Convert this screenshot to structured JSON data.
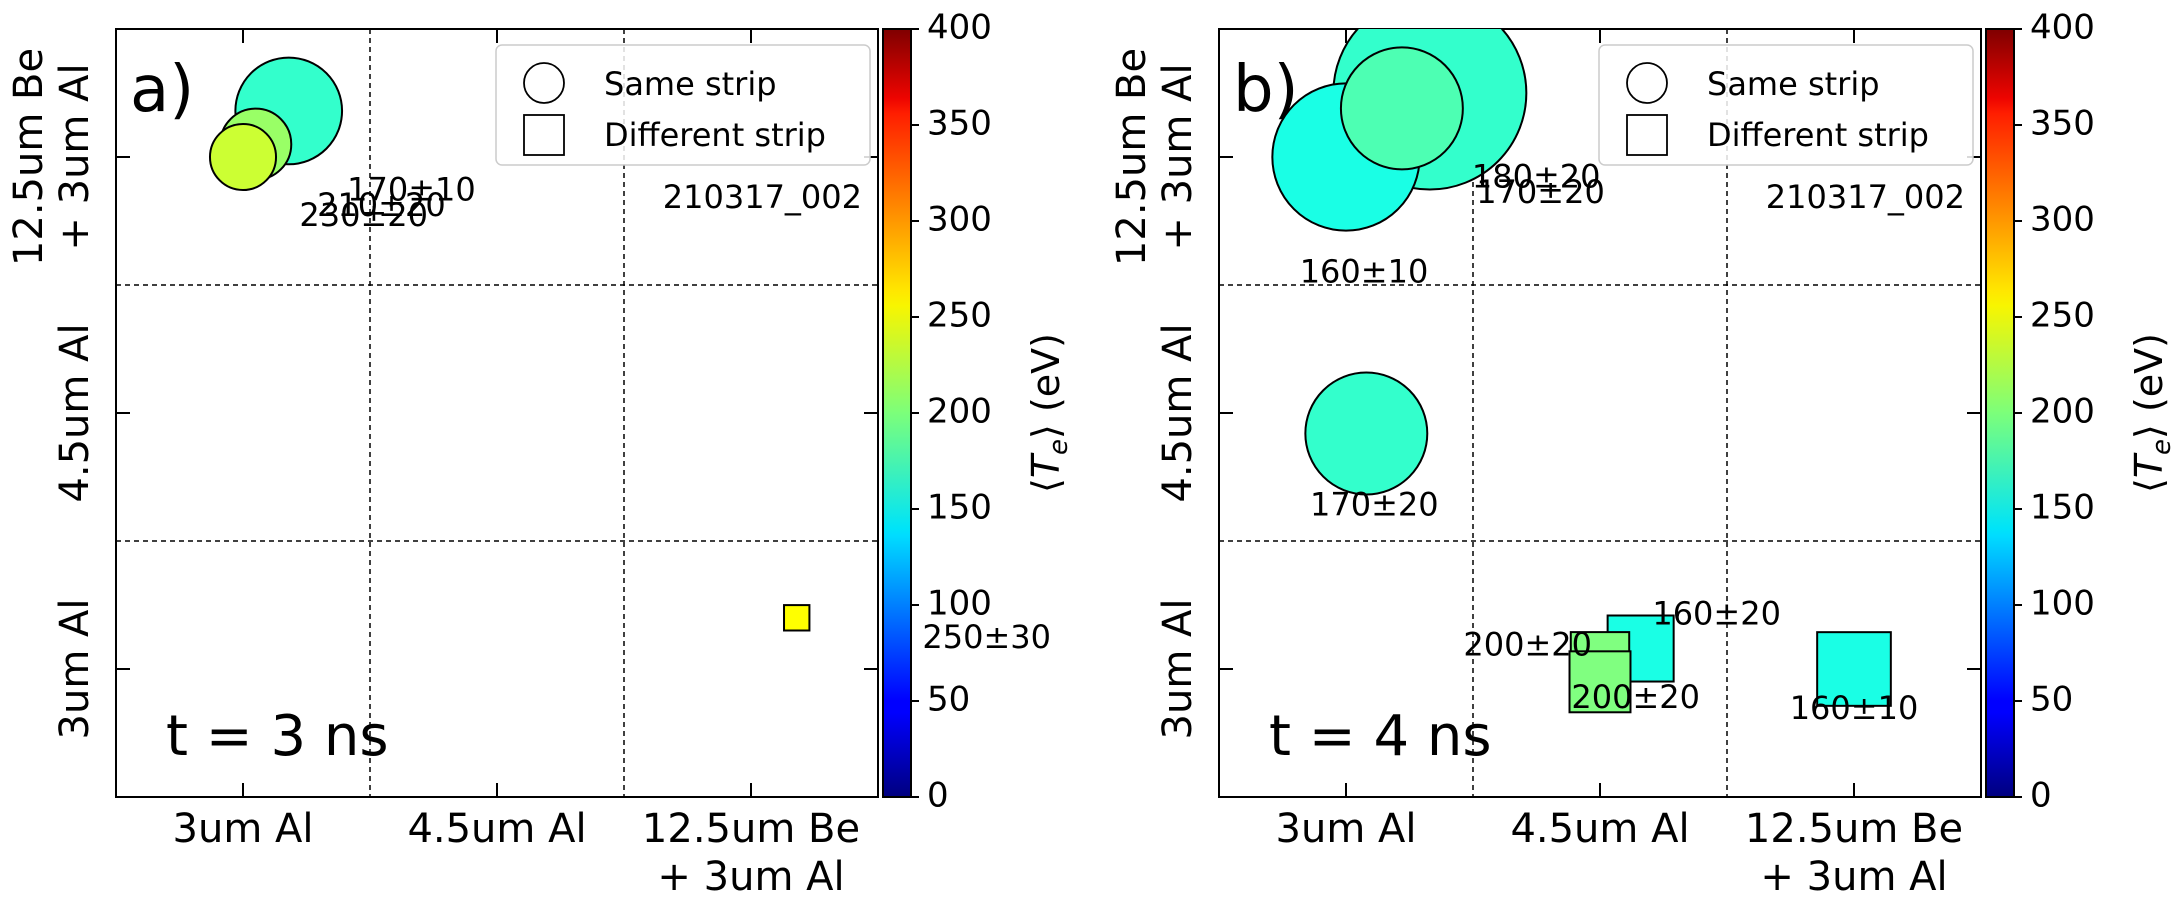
{
  "colorbar": {
    "label": "⟨T_e⟩ (eV)",
    "label_parts": {
      "open": "⟨",
      "var": "T",
      "sub": "e",
      "close": "⟩ (eV)"
    },
    "range": [
      0,
      400
    ],
    "ticks": [
      "0",
      "50",
      "100",
      "150",
      "200",
      "250",
      "300",
      "350",
      "400"
    ],
    "colormap": "jet"
  },
  "chart_data": [
    {
      "type": "scatter",
      "panel_label": "a)",
      "time_label": "t  = 3 ns",
      "shot_id": "210317_002",
      "categories_x": [
        "3um Al",
        "4.5um Al",
        "12.5um Be\n+ 3um Al"
      ],
      "categories_y": [
        "3um Al",
        "4.5um Al",
        "12.5um Be\n+ 3um Al"
      ],
      "legend": [
        {
          "marker": "circle",
          "label": "Same strip"
        },
        {
          "marker": "square",
          "label": "Different strip"
        }
      ],
      "points": [
        {
          "shape": "circle",
          "x": 0.18,
          "y": 2.18,
          "size": 0.21,
          "te": 170,
          "label": "170±10"
        },
        {
          "shape": "circle",
          "x": 0.05,
          "y": 2.05,
          "size": 0.14,
          "te": 210,
          "label": "210±20"
        },
        {
          "shape": "circle",
          "x": 0.0,
          "y": 2.0,
          "size": 0.13,
          "te": 230,
          "label": "230±20"
        },
        {
          "shape": "square",
          "x": 2.18,
          "y": 0.2,
          "size": 0.1,
          "te": 250,
          "label": "250±30"
        }
      ]
    },
    {
      "type": "scatter",
      "panel_label": "b)",
      "time_label": "t  = 4 ns",
      "shot_id": "210317_002",
      "categories_x": [
        "3um Al",
        "4.5um Al",
        "12.5um Be\n+ 3um Al"
      ],
      "categories_y": [
        "3um Al",
        "4.5um Al",
        "12.5um Be\n+ 3um Al"
      ],
      "legend": [
        {
          "marker": "circle",
          "label": "Same strip"
        },
        {
          "marker": "square",
          "label": "Different strip"
        }
      ],
      "points": [
        {
          "shape": "circle",
          "x": 0.33,
          "y": 2.25,
          "size": 0.38,
          "te": 170,
          "label": "170±20"
        },
        {
          "shape": "circle",
          "x": 0.0,
          "y": 2.0,
          "size": 0.29,
          "te": 160,
          "label": "160±10"
        },
        {
          "shape": "circle",
          "x": 0.22,
          "y": 2.19,
          "size": 0.24,
          "te": 180,
          "label": "180±20"
        },
        {
          "shape": "circle",
          "x": 0.08,
          "y": 0.92,
          "size": 0.24,
          "te": 170,
          "label": "170±20"
        },
        {
          "shape": "square",
          "x": 1.16,
          "y": 0.08,
          "size": 0.26,
          "te": 160,
          "label": "160±20"
        },
        {
          "shape": "square",
          "x": 1.0,
          "y": 0.03,
          "size": 0.23,
          "te": 200,
          "label": "200±20"
        },
        {
          "shape": "square",
          "x": 1.0,
          "y": -0.05,
          "size": 0.24,
          "te": 200,
          "label": "200±20"
        },
        {
          "shape": "square",
          "x": 2.0,
          "y": 0.0,
          "size": 0.29,
          "te": 160,
          "label": "160±10"
        }
      ]
    }
  ]
}
